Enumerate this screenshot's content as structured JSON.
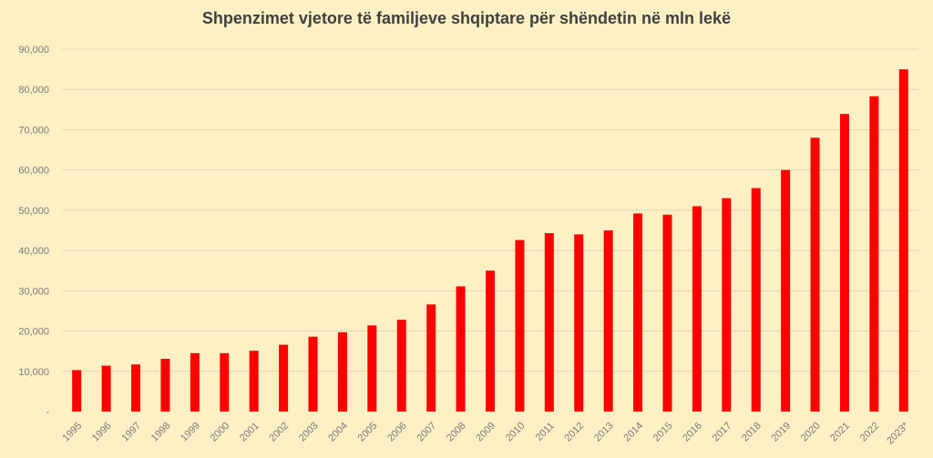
{
  "chart_data": {
    "type": "bar",
    "title": "Shpenzimet vjetore të familjeve shqiptare për shëndetin në mln lekë",
    "xlabel": "",
    "ylabel": "",
    "ylim": [
      0,
      90000
    ],
    "y_ticks": [
      "-",
      "10,000",
      "20,000",
      "30,000",
      "40,000",
      "50,000",
      "60,000",
      "70,000",
      "80,000",
      "90,000"
    ],
    "grid": true,
    "legend": "none",
    "bar_color": "#ff0000",
    "categories": [
      "1995",
      "1996",
      "1997",
      "1998",
      "1999",
      "2000",
      "2001",
      "2002",
      "2003",
      "2004",
      "2005",
      "2006",
      "2007",
      "2008",
      "2009",
      "2010",
      "2011",
      "2012",
      "2013",
      "2014",
      "2015",
      "2016",
      "2017",
      "2018",
      "2019",
      "2020",
      "2021",
      "2022",
      "2023*"
    ],
    "values": [
      10300,
      11400,
      11700,
      13100,
      14500,
      14500,
      15100,
      16600,
      18600,
      19700,
      21400,
      22800,
      26600,
      31100,
      35000,
      42600,
      44300,
      44000,
      45000,
      49200,
      48900,
      51000,
      53000,
      55500,
      60000,
      68000,
      73900,
      78300,
      85000
    ]
  }
}
